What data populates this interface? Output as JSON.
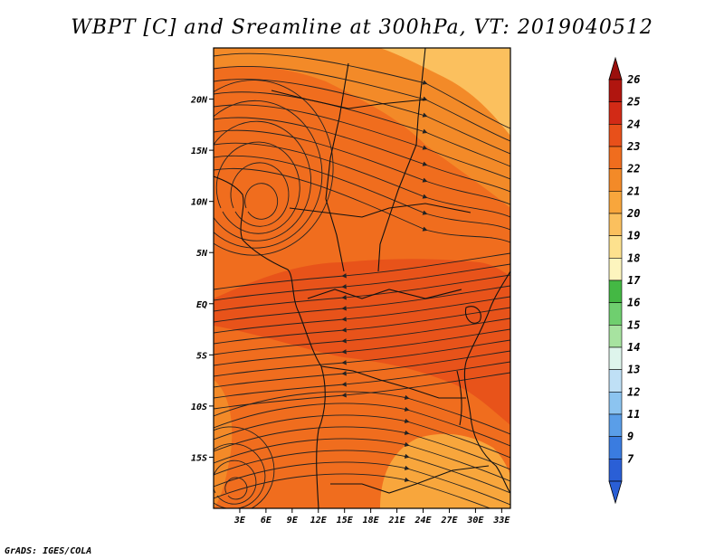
{
  "title": "WBPT [C] and Sreamline at 300hPa, VT: 2019040512",
  "footer": "GrADS: IGES/COLA",
  "map": {
    "lon_range": [
      0,
      34
    ],
    "lat_range": [
      -20,
      25
    ],
    "x_ticks": [
      "3E",
      "6E",
      "9E",
      "12E",
      "15E",
      "18E",
      "21E",
      "24E",
      "27E",
      "30E",
      "33E"
    ],
    "x_tick_values": [
      3,
      6,
      9,
      12,
      15,
      18,
      21,
      24,
      27,
      30,
      33
    ],
    "y_ticks": [
      "20N",
      "15N",
      "10N",
      "5N",
      "EQ",
      "5S",
      "10S",
      "15S"
    ],
    "y_tick_values": [
      20,
      15,
      10,
      5,
      0,
      -5,
      -10,
      -15
    ],
    "field_colors": {
      "band_23": "#f06d1e",
      "band_24": "#e8531a",
      "band_22": "#f38a28",
      "band_21": "#f8a63c",
      "band_20": "#fbc05e"
    },
    "streamline_color": "#222222",
    "coastline_color": "#111111"
  },
  "colorbar": {
    "labels": [
      "26",
      "25",
      "24",
      "23",
      "22",
      "21",
      "20",
      "19",
      "18",
      "17",
      "16",
      "15",
      "14",
      "13",
      "12",
      "11",
      "9",
      "7"
    ],
    "colors": [
      "#b0150f",
      "#d22a16",
      "#e8501a",
      "#f06d1e",
      "#f38a28",
      "#f8a63c",
      "#fbc05e",
      "#fde18e",
      "#fdf5be",
      "#44b844",
      "#6fcf6f",
      "#a7e3a0",
      "#def5ec",
      "#bfe0f6",
      "#8cc4f0",
      "#5a9ee8",
      "#3a7ce0",
      "#2a5fd6"
    ],
    "top_arrow_color": "#9b0f0c",
    "bottom_arrow_color": "#2a5fd6"
  }
}
